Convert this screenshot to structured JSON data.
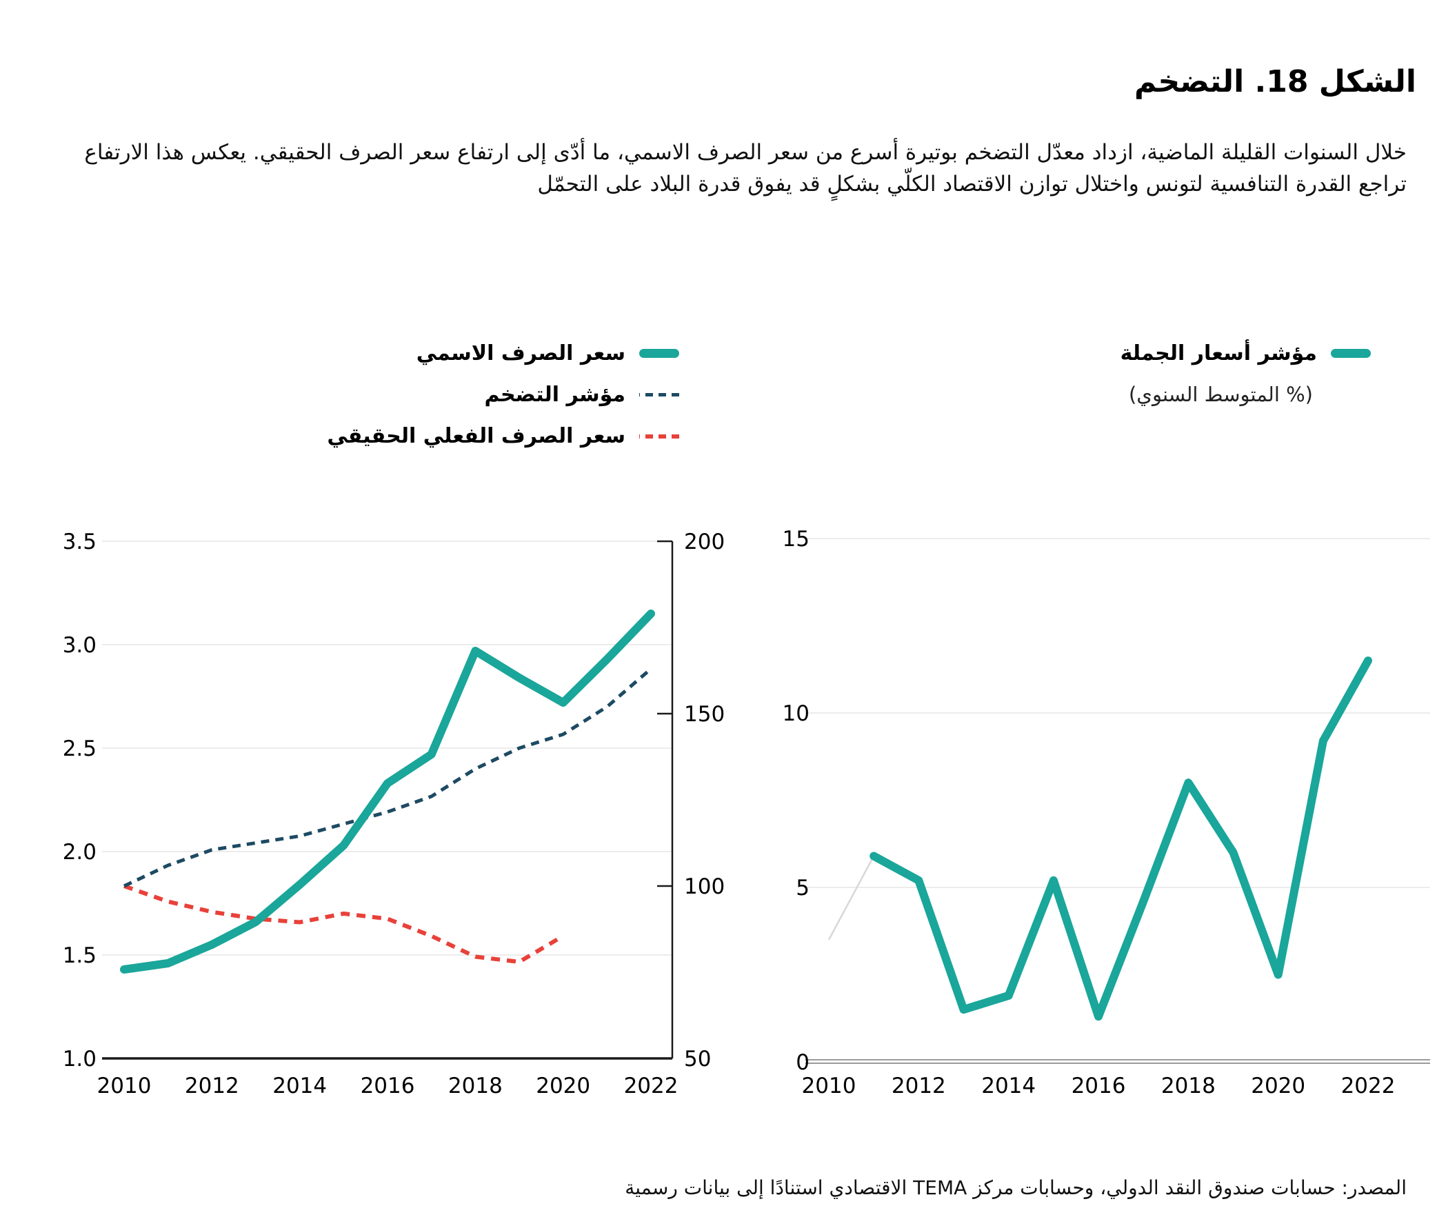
{
  "title": "الشكل 18. التضخم",
  "subtitle": "خلال السنوات القليلة الماضية، ازداد معدّل التضخم بوتيرة أسرع من سعر الصرف الاسمي، ما أدّى إلى ارتفاع سعر الصرف الحقيقي. يعكس هذا الارتفاع تراجع القدرة التنافسية لتونس واختلال توازن الاقتصاد الكلّي بشكلٍ قد يفوق قدرة البلاد على التحمّل",
  "source": "المصدر: حسابات صندوق النقد الدولي،  وحسابات مركز TEMA الاقتصادي استنادًا إلى بيانات رسمية",
  "colors": {
    "teal": "#1aa69a",
    "navy": "#1d4a63",
    "red": "#e8413a",
    "grid": "#ececec",
    "axis": "#1a1a1a",
    "baseline_gray": "#9b9b9b",
    "faint": "#d8d8d8"
  },
  "legend_left": [
    {
      "label": "سعر الصرف الاسمي",
      "style": "solid",
      "color": "teal"
    },
    {
      "label": "مؤشر التضخم",
      "style": "dashed",
      "color": "navy"
    },
    {
      "label": "سعر الصرف الفعلي الحقيقي",
      "style": "dashed",
      "color": "red"
    }
  ],
  "legend_right": {
    "label": "مؤشر أسعار الجملة",
    "sublabel": "(% المتوسط السنوي)",
    "style": "solid",
    "color": "teal"
  },
  "chart_data": [
    {
      "type": "line",
      "name": "exchange-rate-and-inflation",
      "x": [
        2010,
        2011,
        2012,
        2013,
        2014,
        2015,
        2016,
        2017,
        2018,
        2019,
        2020,
        2021,
        2022
      ],
      "x_ticks": [
        2010,
        2012,
        2014,
        2016,
        2018,
        2020,
        2022
      ],
      "left_axis": {
        "range": [
          1.0,
          3.5
        ],
        "ticks": [
          1.0,
          1.5,
          2.0,
          2.5,
          3.0,
          3.5
        ]
      },
      "right_axis": {
        "range": [
          50,
          200
        ],
        "ticks": [
          50,
          100,
          150,
          200
        ]
      },
      "grid": "horizontal",
      "legend_position": "top",
      "series": [
        {
          "name": "سعر الصرف الاسمي",
          "axis": "left",
          "style": "solid",
          "color": "teal",
          "values": [
            1.43,
            1.46,
            1.55,
            1.66,
            1.84,
            2.03,
            2.33,
            2.47,
            2.97,
            2.84,
            2.72,
            2.93,
            3.15
          ]
        },
        {
          "name": "مؤشر التضخم",
          "axis": "right",
          "style": "dashed",
          "color": "navy",
          "values": [
            100,
            106,
            110.5,
            112.5,
            114.5,
            118,
            121.5,
            126,
            134,
            140,
            144,
            152,
            163
          ]
        },
        {
          "name": "سعر الصرف الفعلي الحقيقي",
          "axis": "right",
          "style": "dashed",
          "color": "red",
          "values": [
            100,
            95.5,
            92.5,
            90.5,
            89.5,
            92,
            90.5,
            85.5,
            79.5,
            78,
            85.5,
            null,
            null
          ]
        }
      ]
    },
    {
      "type": "line",
      "name": "wholesale-price-index",
      "x": [
        2010,
        2011,
        2012,
        2013,
        2014,
        2015,
        2016,
        2017,
        2018,
        2019,
        2020,
        2021,
        2022
      ],
      "x_ticks": [
        2010,
        2012,
        2014,
        2016,
        2018,
        2020,
        2022
      ],
      "y_axis": {
        "range": [
          0,
          15
        ],
        "ticks": [
          0,
          5,
          10,
          15
        ]
      },
      "grid": "horizontal",
      "series": [
        {
          "name": "مؤشر أسعار الجملة",
          "style": "solid",
          "color": "teal",
          "faint_first_segment": true,
          "values": [
            3.5,
            5.9,
            5.2,
            1.5,
            1.9,
            5.2,
            1.3,
            4.6,
            8.0,
            6.0,
            2.5,
            9.2,
            11.5
          ]
        }
      ]
    }
  ]
}
